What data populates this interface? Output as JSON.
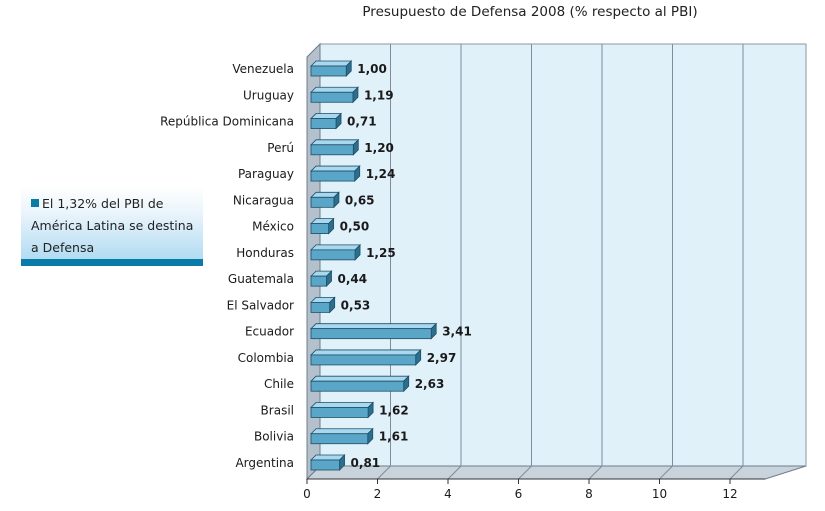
{
  "note": {
    "text": "El 1,32% del PBI de América Latina se destina a Defensa",
    "square_color": "#0a7ba6"
  },
  "chart_data": {
    "type": "bar",
    "orientation": "horizontal",
    "title": "Presupuesto de Defensa 2008 (% respecto al PBI)",
    "xlabel": "",
    "ylabel": "",
    "xlim": [
      0,
      13
    ],
    "x_ticks": [
      0,
      2,
      4,
      6,
      8,
      10,
      12
    ],
    "grid": true,
    "categories": [
      "Venezuela",
      "Uruguay",
      "República Dominicana",
      "Perú",
      "Paraguay",
      "Nicaragua",
      "México",
      "Honduras",
      "Guatemala",
      "El Salvador",
      "Ecuador",
      "Colombia",
      "Chile",
      "Brasil",
      "Bolivia",
      "Argentina"
    ],
    "values": [
      1.0,
      1.19,
      0.71,
      1.2,
      1.24,
      0.65,
      0.5,
      1.25,
      0.44,
      0.53,
      3.41,
      2.97,
      2.63,
      1.62,
      1.61,
      0.81
    ],
    "value_labels": [
      "1,00",
      "1,19",
      "0,71",
      "1,20",
      "1,24",
      "0,65",
      "0,50",
      "1,25",
      "0,44",
      "0,53",
      "3,41",
      "2,97",
      "2,63",
      "1,62",
      "1,61",
      "0,81"
    ],
    "colors": {
      "bar_front": "#5aa6c8",
      "bar_top": "#a8d8ef",
      "bar_side": "#2b6f8f",
      "plot_bg": "#e1f1fa",
      "wall_side": "#b4c0cc",
      "floor": "#c9d3dc",
      "grid": "#7f8c99"
    }
  }
}
